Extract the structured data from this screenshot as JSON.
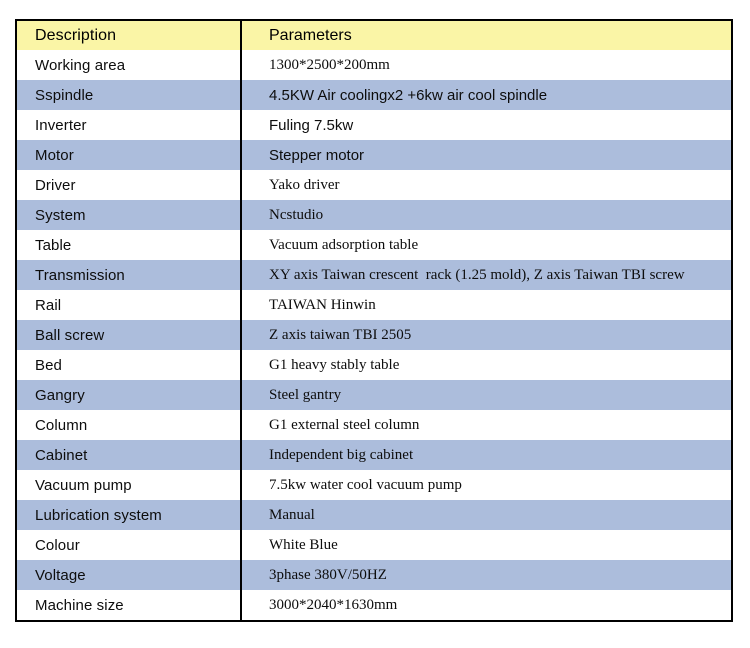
{
  "table": {
    "header": {
      "description": "Description",
      "parameters": "Parameters"
    },
    "rows": [
      {
        "label": "Working area",
        "value": "1300*2500*200mm",
        "value_font": "serif"
      },
      {
        "label": "Sspindle",
        "value": "4.5KW Air coolingx2 +6kw air cool spindle",
        "value_font": "sans"
      },
      {
        "label": "Inverter",
        "value": "Fuling 7.5kw",
        "value_font": "sans"
      },
      {
        "label": "Motor",
        "value": "Stepper motor",
        "value_font": "sans"
      },
      {
        "label": "Driver",
        "value": "Yako driver",
        "value_font": "serif"
      },
      {
        "label": "System",
        "value": "Ncstudio",
        "value_font": "serif"
      },
      {
        "label": "Table",
        "value": "Vacuum adsorption table",
        "value_font": "serif"
      },
      {
        "label": "Transmission",
        "value": "XY axis Taiwan crescent  rack (1.25 mold), Z axis Taiwan TBI screw",
        "value_font": "serif-small"
      },
      {
        "label": "Rail",
        "value": "TAIWAN Hinwin",
        "value_font": "serif"
      },
      {
        "label": "Ball screw",
        "value": "Z axis taiwan TBI 2505",
        "value_font": "serif"
      },
      {
        "label": "Bed",
        "value": "G1 heavy stably table",
        "value_font": "serif"
      },
      {
        "label": "Gangry",
        "value": "Steel gantry",
        "value_font": "serif"
      },
      {
        "label": "Column",
        "value": "G1 external steel column",
        "value_font": "serif"
      },
      {
        "label": "Cabinet",
        "value": "Independent big cabinet",
        "value_font": "serif"
      },
      {
        "label": "Vacuum pump",
        "value": "7.5kw water cool vacuum pump",
        "value_font": "serif"
      },
      {
        "label": "Lubrication system",
        "value": "Manual",
        "value_font": "serif"
      },
      {
        "label": "Colour",
        "value": "White Blue",
        "value_font": "serif"
      },
      {
        "label": "Voltage",
        "value": "3phase 380V/50HZ",
        "value_font": "serif"
      },
      {
        "label": "Machine size",
        "value": "3000*2040*1630mm",
        "value_font": "serif"
      }
    ],
    "colors": {
      "header_bg": "#faf5a6",
      "row_bg": "#ffffff",
      "row_alt_bg": "#acbddc",
      "border": "#000000"
    }
  }
}
